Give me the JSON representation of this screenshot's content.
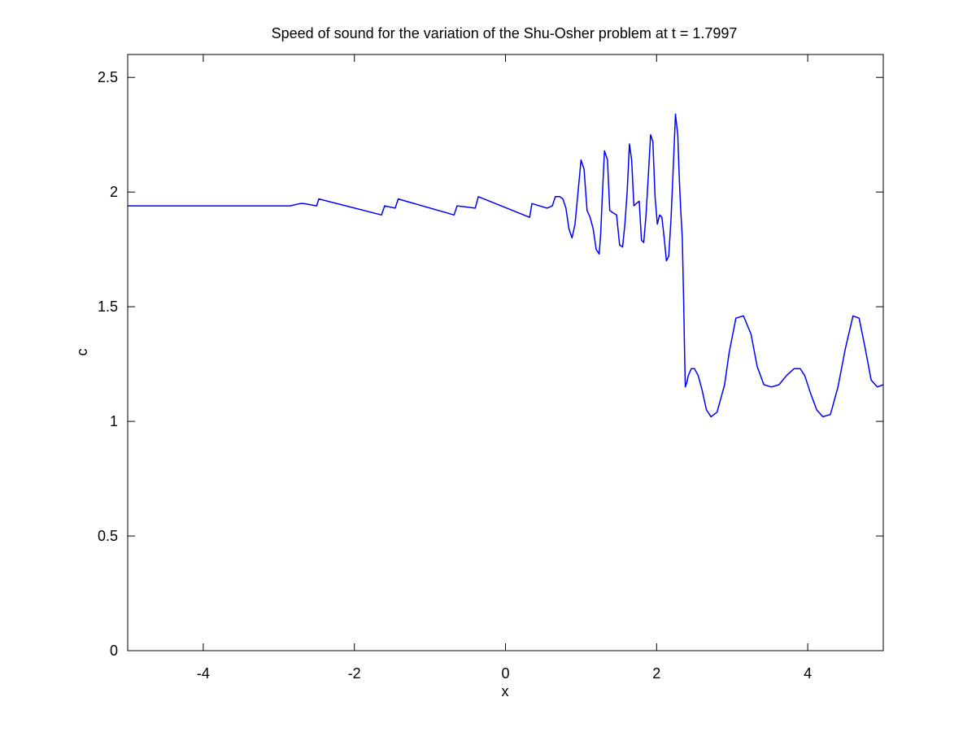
{
  "chart_data": {
    "type": "line",
    "title": "Speed of sound for the variation of the Shu-Osher problem at t = 1.7997",
    "xlabel": "x",
    "ylabel": "c",
    "xlim": [
      -5,
      5
    ],
    "ylim": [
      0,
      2.6
    ],
    "xticks": [
      -4,
      -2,
      0,
      2,
      4
    ],
    "xtick_labels": [
      "-4",
      "-2",
      "0",
      "2",
      "4"
    ],
    "yticks": [
      0,
      0.5,
      1,
      1.5,
      2,
      2.5
    ],
    "ytick_labels": [
      "0",
      "0.5",
      "1",
      "1.5",
      "2",
      "2.5"
    ],
    "grid": false,
    "legend": "none",
    "series_color": "#0000ff",
    "series": [
      {
        "x": [
          -5,
          -2.85,
          -2.72,
          -2.67,
          -2.5,
          -2.47,
          -1.64,
          -1.6,
          -1.46,
          -1.42,
          -0.68,
          -0.64,
          -0.4,
          -0.36,
          0.32,
          0.35,
          0.55,
          0.62,
          0.66,
          0.72,
          0.76,
          0.8,
          0.84,
          0.88,
          0.92,
          0.96,
          1.0,
          1.04,
          1.08,
          1.12,
          1.16,
          1.2,
          1.24,
          1.26,
          1.28,
          1.31,
          1.35,
          1.38,
          1.42,
          1.47,
          1.51,
          1.55,
          1.58,
          1.61,
          1.64,
          1.67,
          1.7,
          1.73,
          1.77,
          1.8,
          1.83,
          1.86,
          1.89,
          1.92,
          1.95,
          1.98,
          2.01,
          2.04,
          2.07,
          2.1,
          2.13,
          2.16,
          2.19,
          2.22,
          2.25,
          2.28,
          2.3,
          2.32,
          2.34,
          2.36,
          2.37,
          2.38,
          2.39,
          2.4,
          2.42,
          2.46,
          2.5,
          2.55,
          2.6,
          2.66,
          2.72,
          2.8,
          2.9,
          2.96,
          3.05,
          3.15,
          3.25,
          3.33,
          3.42,
          3.52,
          3.62,
          3.72,
          3.82,
          3.9,
          3.96,
          4.04,
          4.12,
          4.2,
          4.3,
          4.4,
          4.5,
          4.6,
          4.68,
          4.76,
          4.84,
          4.92,
          5.0
        ],
        "y": [
          1.94,
          1.94,
          1.95,
          1.95,
          1.94,
          1.97,
          1.9,
          1.94,
          1.93,
          1.97,
          1.9,
          1.94,
          1.93,
          1.98,
          1.89,
          1.95,
          1.93,
          1.94,
          1.98,
          1.98,
          1.97,
          1.93,
          1.84,
          1.8,
          1.86,
          2.0,
          2.14,
          2.1,
          1.92,
          1.89,
          1.84,
          1.75,
          1.73,
          1.82,
          1.97,
          2.18,
          2.14,
          1.92,
          1.91,
          1.9,
          1.77,
          1.76,
          1.86,
          2.0,
          2.21,
          2.14,
          1.94,
          1.95,
          1.96,
          1.79,
          1.78,
          1.9,
          2.07,
          2.25,
          2.22,
          1.98,
          1.86,
          1.9,
          1.89,
          1.8,
          1.7,
          1.72,
          1.88,
          2.1,
          2.34,
          2.25,
          2.06,
          1.92,
          1.8,
          1.5,
          1.3,
          1.15,
          1.16,
          1.17,
          1.2,
          1.23,
          1.23,
          1.2,
          1.14,
          1.05,
          1.02,
          1.04,
          1.16,
          1.3,
          1.45,
          1.46,
          1.38,
          1.24,
          1.16,
          1.15,
          1.16,
          1.2,
          1.23,
          1.23,
          1.2,
          1.12,
          1.05,
          1.02,
          1.03,
          1.15,
          1.32,
          1.46,
          1.45,
          1.32,
          1.18,
          1.15,
          1.16
        ]
      }
    ]
  }
}
